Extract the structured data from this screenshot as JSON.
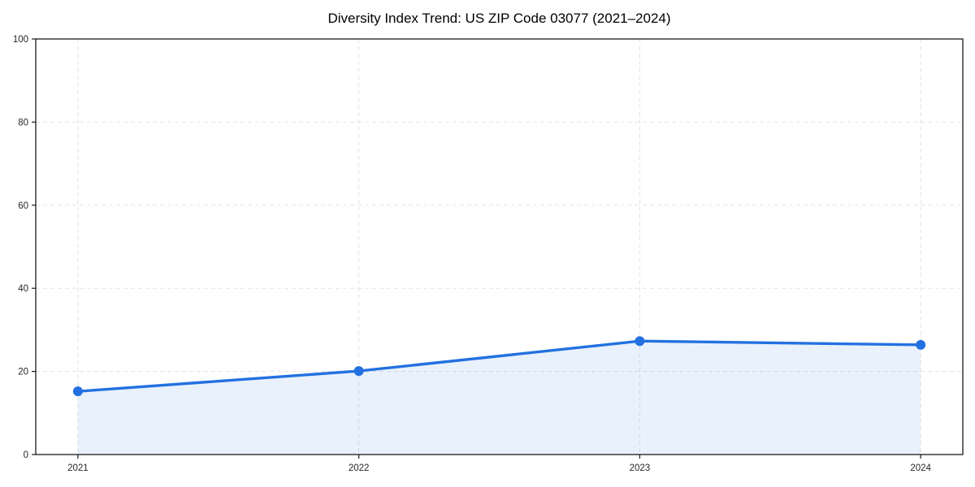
{
  "chart_data": {
    "type": "line",
    "title": "Diversity Index Trend: US ZIP Code 03077 (2021–2024)",
    "x": [
      2021,
      2022,
      2023,
      2024
    ],
    "xtick_labels": [
      "2021",
      "2022",
      "2023",
      "2024"
    ],
    "series": [
      {
        "name": "Diversity Index",
        "values": [
          15.2,
          20.1,
          27.3,
          26.4
        ],
        "line_color": "#2371e0",
        "marker": "circle",
        "marker_color": "#2371e0",
        "area_fill": true,
        "fill_color": "rgba(35, 113, 224, 0.10)"
      }
    ],
    "xlabel": "",
    "ylabel": "",
    "ylim": [
      0,
      100
    ],
    "yticks": [
      0,
      20,
      40,
      60,
      80,
      100
    ],
    "x_margin_fraction": 0.05,
    "grid": true,
    "grid_style": "dashed",
    "grid_color": "#e3e3e3",
    "spine_color": "#1a1a1a",
    "tick_color": "#1a1a1a",
    "legend_position": "none",
    "plot_background": "#ffffff"
  }
}
